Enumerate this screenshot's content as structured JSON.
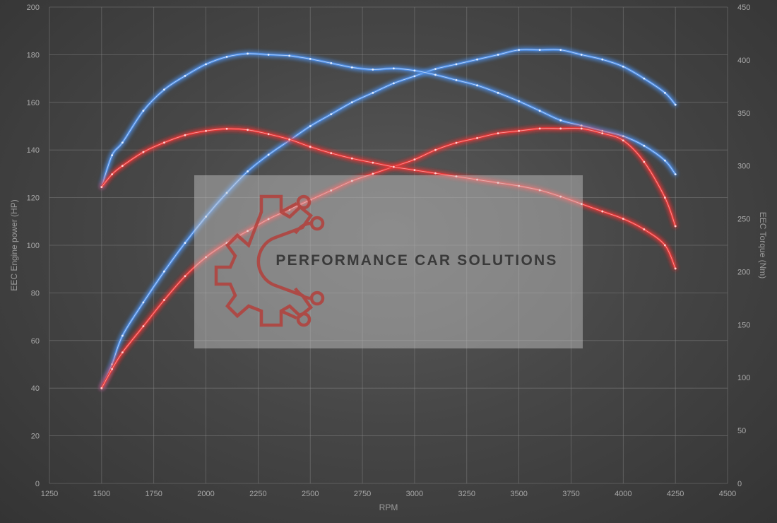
{
  "chart_data": {
    "type": "line",
    "title": "",
    "xlabel": "RPM",
    "ylabel_left": "EEC Engine power (HP)",
    "ylabel_right": "EEC Torque (Nm)",
    "xlim": [
      1250,
      4500
    ],
    "ylim_left": [
      0,
      200
    ],
    "ylim_right": [
      0,
      450
    ],
    "x_ticks": [
      1250,
      1500,
      1750,
      2000,
      2250,
      2500,
      2750,
      3000,
      3250,
      3500,
      3750,
      4000,
      4250,
      4500
    ],
    "y_ticks_left": [
      0,
      20,
      40,
      60,
      80,
      100,
      120,
      140,
      160,
      180,
      200
    ],
    "y_ticks_right": [
      0,
      50,
      100,
      150,
      200,
      250,
      300,
      350,
      400,
      450
    ],
    "grid": true,
    "legend": "none",
    "series": [
      {
        "axis": "left",
        "color": "#4f8fe6",
        "points": [
          [
            1500,
            40
          ],
          [
            1550,
            50
          ],
          [
            1600,
            62
          ],
          [
            1700,
            76
          ],
          [
            1800,
            89
          ],
          [
            1900,
            101
          ],
          [
            2000,
            112
          ],
          [
            2100,
            122
          ],
          [
            2200,
            131
          ],
          [
            2300,
            138
          ],
          [
            2400,
            144
          ],
          [
            2500,
            150
          ],
          [
            2600,
            155
          ],
          [
            2700,
            160
          ],
          [
            2800,
            164
          ],
          [
            2900,
            168
          ],
          [
            3000,
            171
          ],
          [
            3100,
            174
          ],
          [
            3200,
            176
          ],
          [
            3300,
            178
          ],
          [
            3400,
            180
          ],
          [
            3500,
            182
          ],
          [
            3600,
            182
          ],
          [
            3700,
            182
          ],
          [
            3800,
            180
          ],
          [
            3900,
            178
          ],
          [
            4000,
            175
          ],
          [
            4100,
            170
          ],
          [
            4200,
            164
          ],
          [
            4250,
            159
          ]
        ]
      },
      {
        "axis": "right",
        "color": "#4f8fe6",
        "points": [
          [
            1500,
            280
          ],
          [
            1550,
            310
          ],
          [
            1600,
            322
          ],
          [
            1700,
            352
          ],
          [
            1800,
            372
          ],
          [
            1900,
            385
          ],
          [
            2000,
            396
          ],
          [
            2100,
            403
          ],
          [
            2200,
            406
          ],
          [
            2300,
            405
          ],
          [
            2400,
            404
          ],
          [
            2500,
            401
          ],
          [
            2600,
            397
          ],
          [
            2700,
            393
          ],
          [
            2800,
            391
          ],
          [
            2900,
            392
          ],
          [
            3000,
            390
          ],
          [
            3100,
            386
          ],
          [
            3200,
            381
          ],
          [
            3300,
            376
          ],
          [
            3400,
            369
          ],
          [
            3500,
            361
          ],
          [
            3600,
            352
          ],
          [
            3700,
            343
          ],
          [
            3800,
            338
          ],
          [
            3900,
            333
          ],
          [
            4000,
            328
          ],
          [
            4100,
            319
          ],
          [
            4200,
            305
          ],
          [
            4250,
            292
          ]
        ]
      },
      {
        "axis": "left",
        "color": "#e53838",
        "points": [
          [
            1500,
            40
          ],
          [
            1550,
            48
          ],
          [
            1600,
            55
          ],
          [
            1700,
            66
          ],
          [
            1800,
            77
          ],
          [
            1900,
            87
          ],
          [
            2000,
            95
          ],
          [
            2100,
            101
          ],
          [
            2200,
            106
          ],
          [
            2300,
            111
          ],
          [
            2400,
            115
          ],
          [
            2500,
            119
          ],
          [
            2600,
            123
          ],
          [
            2700,
            127
          ],
          [
            2800,
            130
          ],
          [
            2900,
            133
          ],
          [
            3000,
            136
          ],
          [
            3100,
            140
          ],
          [
            3200,
            143
          ],
          [
            3300,
            145
          ],
          [
            3400,
            147
          ],
          [
            3500,
            148
          ],
          [
            3600,
            149
          ],
          [
            3700,
            149
          ],
          [
            3800,
            149
          ],
          [
            3900,
            147
          ],
          [
            4000,
            144
          ],
          [
            4100,
            135
          ],
          [
            4200,
            120
          ],
          [
            4250,
            108
          ]
        ]
      },
      {
        "axis": "right",
        "color": "#e53838",
        "points": [
          [
            1500,
            280
          ],
          [
            1550,
            292
          ],
          [
            1600,
            300
          ],
          [
            1700,
            313
          ],
          [
            1800,
            322
          ],
          [
            1900,
            329
          ],
          [
            2000,
            333
          ],
          [
            2100,
            335
          ],
          [
            2200,
            334
          ],
          [
            2300,
            330
          ],
          [
            2400,
            325
          ],
          [
            2500,
            318
          ],
          [
            2600,
            312
          ],
          [
            2700,
            307
          ],
          [
            2800,
            303
          ],
          [
            2900,
            299
          ],
          [
            3000,
            296
          ],
          [
            3100,
            293
          ],
          [
            3200,
            290
          ],
          [
            3300,
            287
          ],
          [
            3400,
            284
          ],
          [
            3500,
            281
          ],
          [
            3600,
            277
          ],
          [
            3700,
            271
          ],
          [
            3800,
            264
          ],
          [
            3900,
            257
          ],
          [
            4000,
            250
          ],
          [
            4100,
            240
          ],
          [
            4200,
            225
          ],
          [
            4250,
            203
          ]
        ]
      }
    ]
  },
  "watermark": {
    "text": "PERFORMANCE CAR SOLUTIONS"
  }
}
